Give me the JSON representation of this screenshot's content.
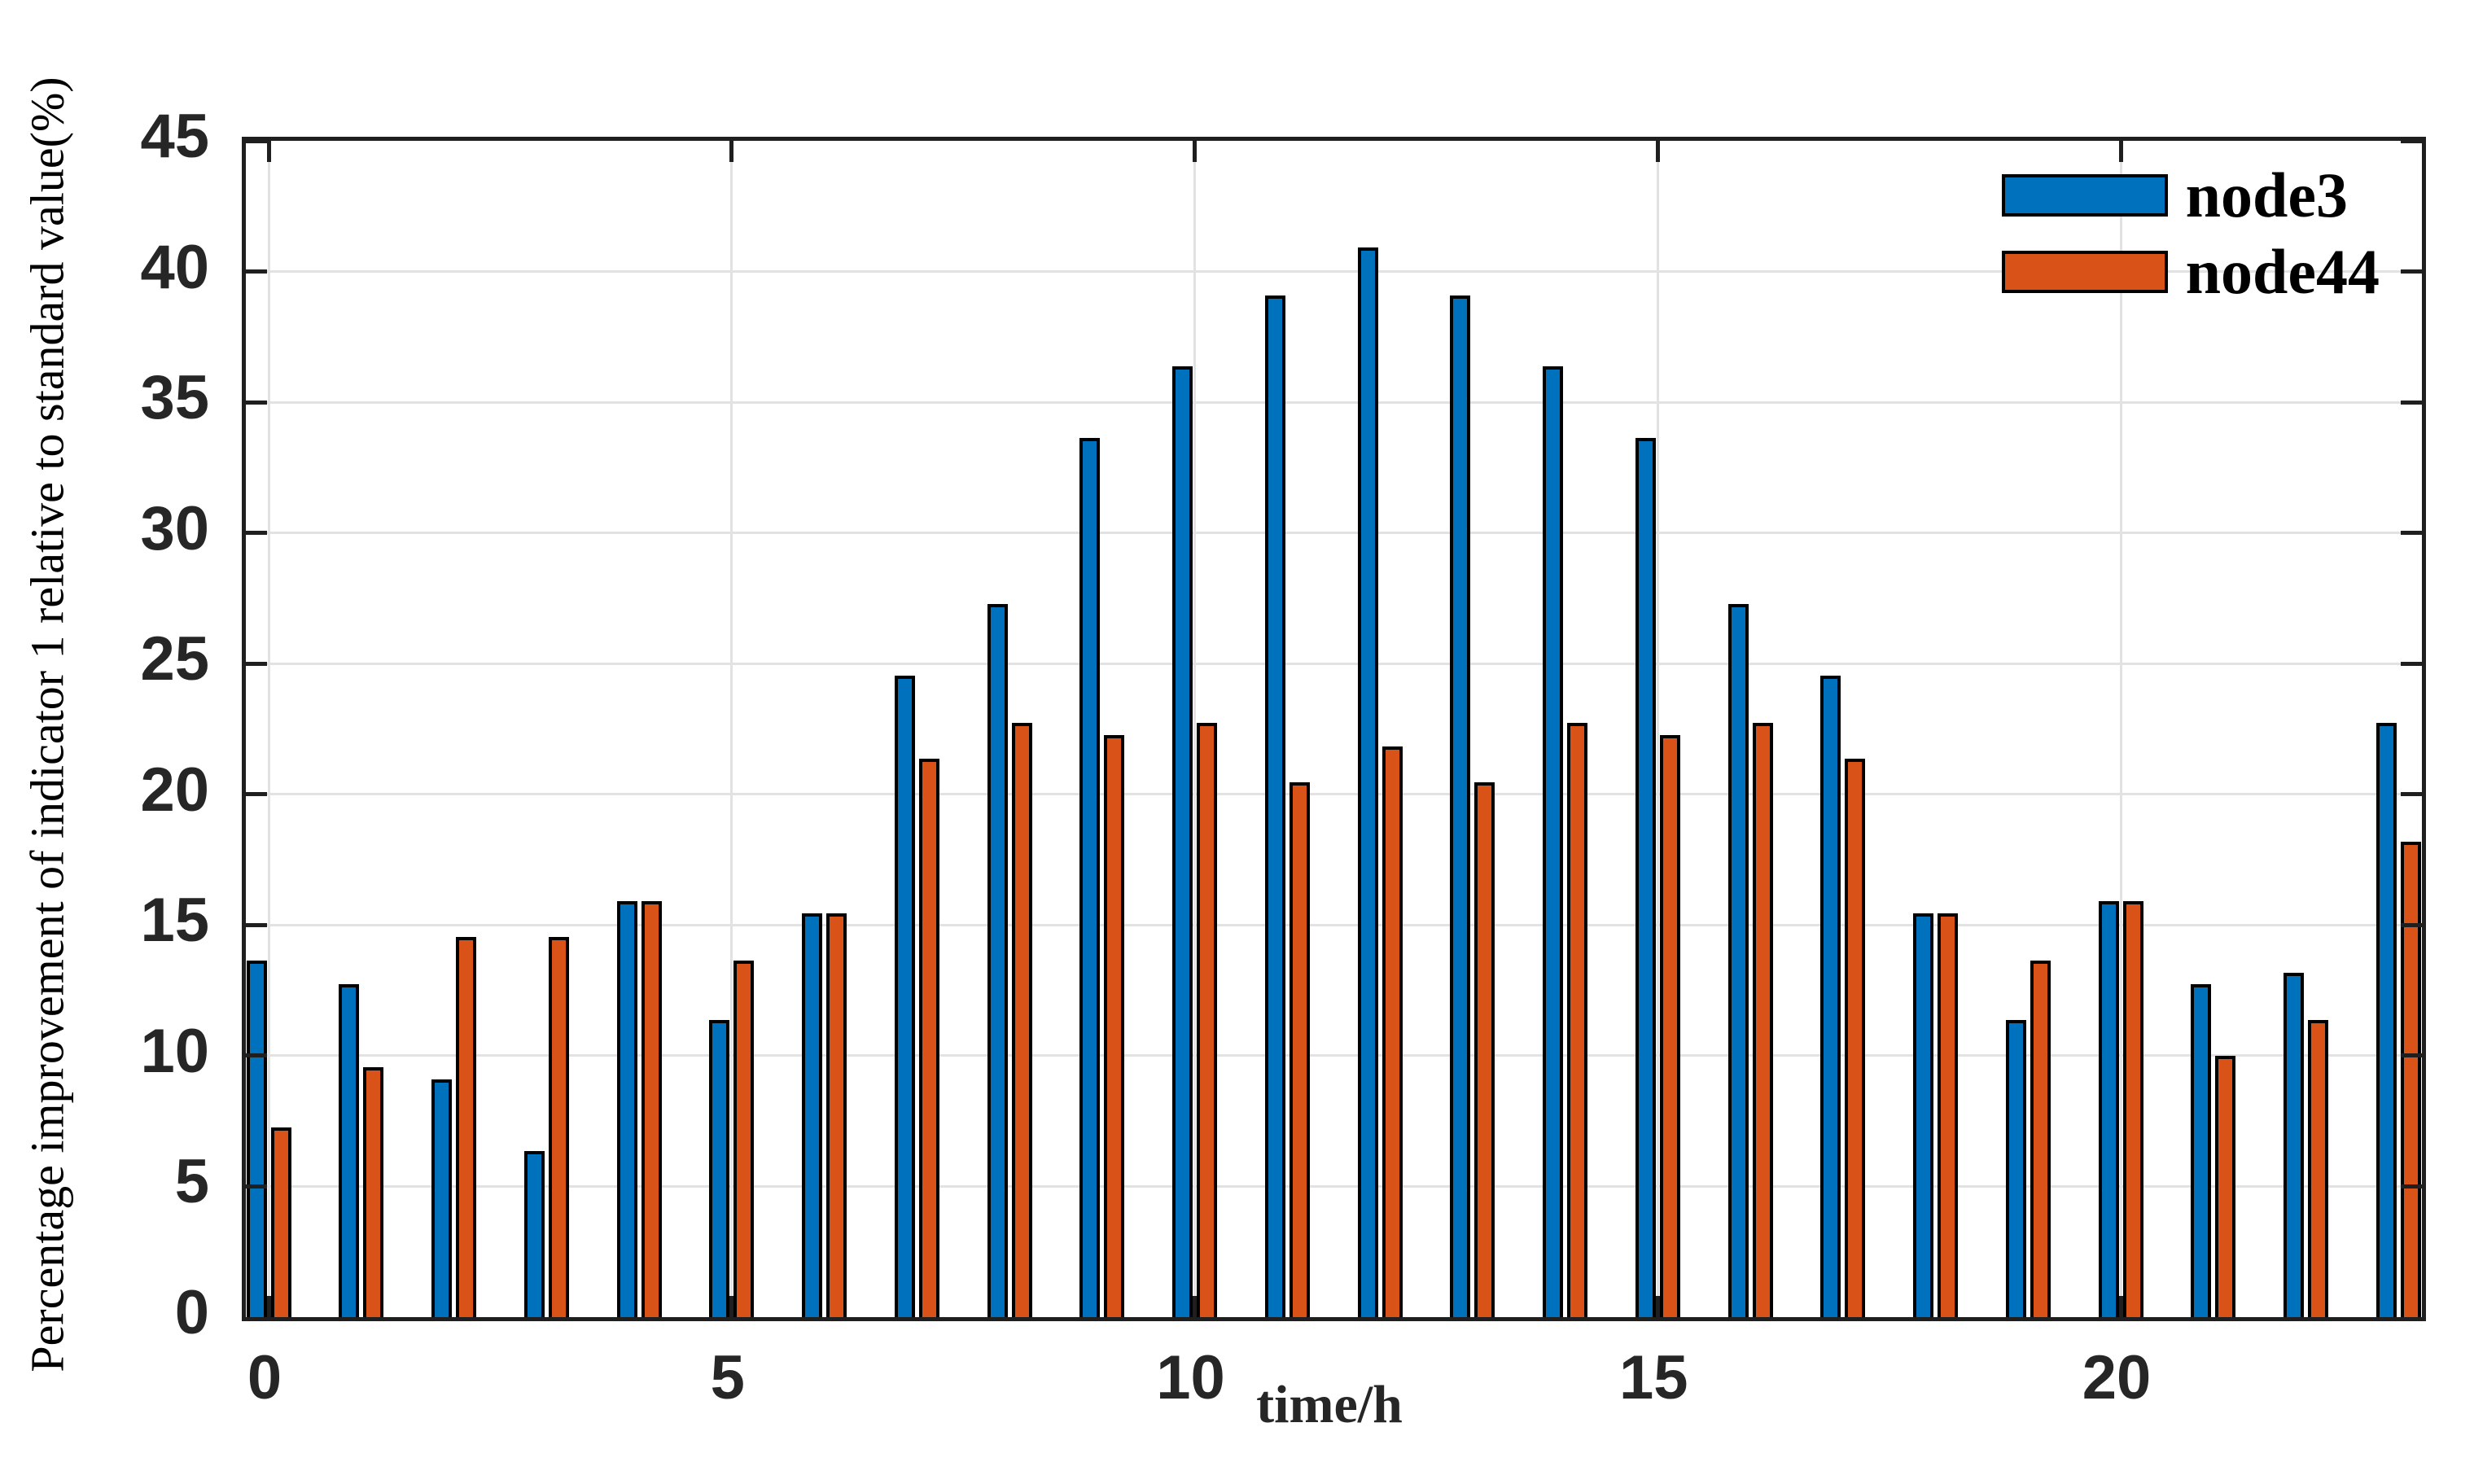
{
  "chart_data": {
    "type": "bar",
    "title": "",
    "xlabel": "time/h",
    "ylabel": "Percentage improvement of indicator 1 relative to standard value(%)",
    "categories": [
      0,
      1,
      2,
      3,
      4,
      5,
      6,
      7,
      8,
      9,
      10,
      11,
      12,
      13,
      14,
      15,
      16,
      17,
      18,
      19,
      20,
      21,
      22,
      23
    ],
    "series": [
      {
        "name": "node3",
        "color": "#0072BD",
        "values": [
          13.64,
          12.73,
          9.09,
          6.36,
          15.91,
          11.36,
          15.45,
          24.55,
          27.27,
          33.64,
          36.36,
          39.09,
          40.91,
          39.09,
          36.36,
          33.64,
          27.27,
          24.55,
          15.45,
          11.36,
          15.91,
          12.73,
          13.18,
          22.73
        ]
      },
      {
        "name": "node44",
        "color": "#D95319",
        "values": [
          7.27,
          9.55,
          14.55,
          14.55,
          15.91,
          13.64,
          15.45,
          21.36,
          22.73,
          22.27,
          22.73,
          20.45,
          21.82,
          20.45,
          22.73,
          22.27,
          22.73,
          21.36,
          15.45,
          13.64,
          15.91,
          10.0,
          11.36,
          18.18
        ]
      }
    ],
    "ylim": [
      0,
      45
    ],
    "yticks": [
      0,
      5,
      10,
      15,
      20,
      25,
      30,
      35,
      40,
      45
    ],
    "xticks": [
      0,
      5,
      10,
      15,
      20
    ],
    "grid": "on",
    "legend_position": "top-right",
    "bar_edge_color": "#000000",
    "grid_color": "#e2e2e2",
    "axis_color": "#1f1f1f"
  }
}
